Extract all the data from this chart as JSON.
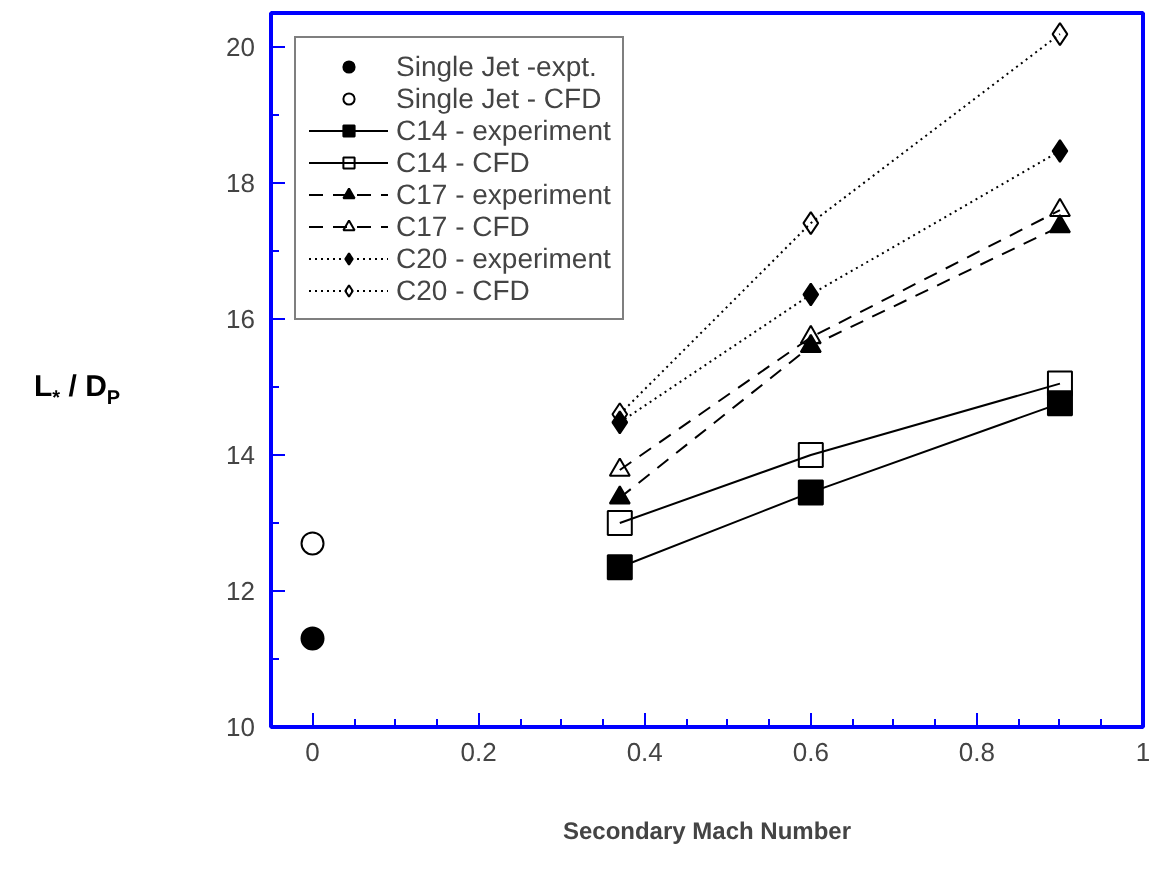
{
  "chart_data": {
    "type": "line",
    "xlabel": "Secondary Mach Number",
    "ylabel": "L$_{*}$ / D$_{P}$",
    "xlim": [
      -0.05,
      1
    ],
    "ylim": [
      10,
      20.5
    ],
    "xticks": [
      0,
      0.2,
      0.4,
      0.6,
      0.8,
      1
    ],
    "yticks": [
      10,
      12,
      14,
      16,
      18,
      20
    ],
    "grid": false,
    "legend": "top left",
    "series": [
      {
        "name": "Single Jet -expt.",
        "type": "scatter",
        "marker": "circle",
        "color": "#000000",
        "x": [
          0
        ],
        "values": [
          11.3
        ]
      },
      {
        "name": "Single Jet - CFD",
        "type": "scatter",
        "marker": "circle_open",
        "color": "#000000",
        "x": [
          0
        ],
        "values": [
          12.7
        ]
      },
      {
        "name": "C14 - experiment",
        "marker": "square",
        "line_style": "solid",
        "color": "#000000",
        "x": [
          0.37,
          0.6,
          0.9
        ],
        "values": [
          12.35,
          13.45,
          14.76
        ]
      },
      {
        "name": "C14 - CFD",
        "marker": "square_open",
        "line_style": "solid",
        "color": "#000000",
        "x": [
          0.37,
          0.6,
          0.9
        ],
        "values": [
          13.0,
          14.0,
          15.05
        ]
      },
      {
        "name": "C17 - experiment",
        "marker": "triangle",
        "line_style": "dashed",
        "color": "#000000",
        "x": [
          0.37,
          0.6,
          0.9
        ],
        "values": [
          13.37,
          15.6,
          17.36
        ]
      },
      {
        "name": "C17 - CFD",
        "marker": "triangle_open",
        "line_style": "dashed",
        "color": "#000000",
        "x": [
          0.37,
          0.6,
          0.9
        ],
        "values": [
          13.78,
          15.73,
          17.6
        ]
      },
      {
        "name": "C20 - experiment",
        "marker": "diamond",
        "line_style": "dotted",
        "color": "#000000",
        "x": [
          0.37,
          0.6,
          0.9
        ],
        "values": [
          14.48,
          16.36,
          18.47
        ]
      },
      {
        "name": "C20 - CFD",
        "marker": "diamond_open",
        "line_style": "dotted",
        "color": "#000000",
        "x": [
          0.37,
          0.6,
          0.9
        ],
        "values": [
          14.6,
          17.41,
          20.19
        ]
      }
    ]
  }
}
